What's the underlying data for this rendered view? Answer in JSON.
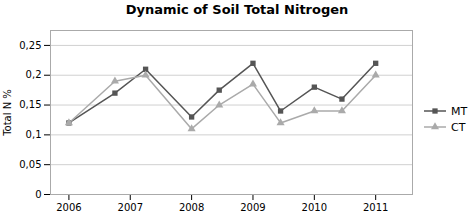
{
  "chart_data": {
    "type": "line",
    "title": "Dynamic of Soil Total Nitrogen",
    "ylabel": "Total N %",
    "x": [
      2006,
      2006.75,
      2007.25,
      2008,
      2008.45,
      2009,
      2009.45,
      2010,
      2010.45,
      2011
    ],
    "series": [
      {
        "name": "MT",
        "color": "#555555",
        "marker": "square",
        "values": [
          0.12,
          0.17,
          0.21,
          0.13,
          0.175,
          0.22,
          0.14,
          0.18,
          0.16,
          0.22
        ]
      },
      {
        "name": "CT",
        "color": "#aaaaaa",
        "marker": "triangle",
        "values": [
          0.12,
          0.19,
          0.2,
          0.11,
          0.15,
          0.185,
          0.12,
          0.14,
          0.14,
          0.2
        ]
      }
    ],
    "xlim": [
      2005.7,
      2011.6
    ],
    "xticks": [
      2006,
      2007,
      2008,
      2009,
      2010,
      2011
    ],
    "ylim": [
      0,
      0.275
    ],
    "yticks": [
      0,
      {
        "value": 0.05,
        "label": "0,05"
      },
      {
        "value": 0.1,
        "label": "0,1"
      },
      {
        "value": 0.15,
        "label": "0,15"
      },
      {
        "value": 0.2,
        "label": "0,2"
      },
      {
        "value": 0.25,
        "label": "0,25"
      }
    ],
    "grid": "y",
    "legend": "right"
  }
}
